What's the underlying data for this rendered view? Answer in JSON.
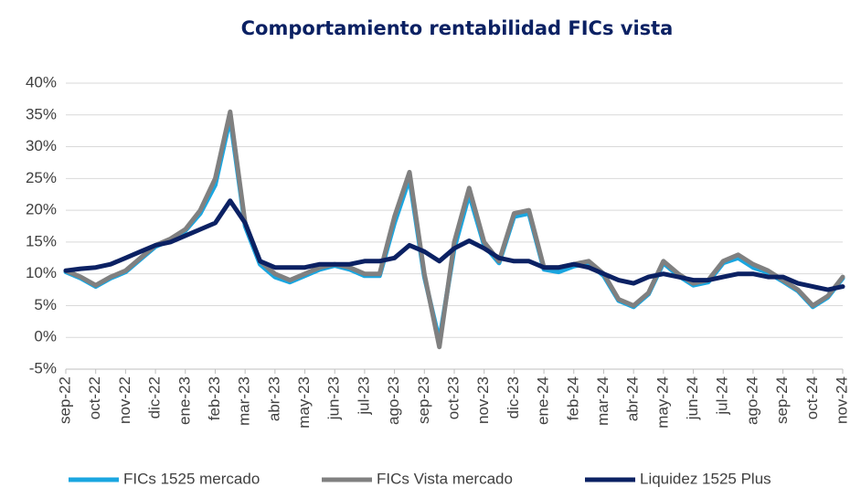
{
  "chart_data": {
    "type": "line",
    "title": "Comportamiento rentabilidad FICs vista",
    "categories": [
      "sep-22",
      null,
      "oct-22",
      null,
      "nov-22",
      null,
      "dic-22",
      null,
      "ene-23",
      null,
      "feb-23",
      null,
      "mar-23",
      null,
      "abr-23",
      null,
      "may-23",
      null,
      "jun-23",
      null,
      "jul-23",
      null,
      "ago-23",
      null,
      "sep-23",
      null,
      "oct-23",
      null,
      "nov-23",
      null,
      "dic-23",
      null,
      "ene-24",
      null,
      "feb-24",
      null,
      "mar-24",
      null,
      "abr-24",
      null,
      "may-24",
      null,
      "jun-24",
      null,
      "jul-24",
      null,
      "ago-24",
      null,
      "sep-24",
      null,
      "oct-24",
      null,
      "nov-24"
    ],
    "series": [
      {
        "name": "FICs 1525 mercado",
        "color": "#1aa6e0",
        "values": [
          10.3,
          9.3,
          8.0,
          9.3,
          10.3,
          12.3,
          14.3,
          15.3,
          16.8,
          19.5,
          24,
          34.5,
          17.5,
          11.5,
          9.5,
          8.7,
          9.7,
          10.7,
          11.3,
          10.7,
          9.7,
          9.7,
          18,
          25,
          9.5,
          -0.5,
          14,
          22.5,
          14.5,
          11.7,
          19,
          19.5,
          10.7,
          10.3,
          11.2,
          11.7,
          9.7,
          5.8,
          4.8,
          6.8,
          11.7,
          9.7,
          8.2,
          8.7,
          11.7,
          12.5,
          11,
          10.2,
          8.8,
          7.3,
          4.8,
          6.3,
          9.3
        ]
      },
      {
        "name": "FICs Vista mercado",
        "color": "#808080",
        "values": [
          10.5,
          9.5,
          8.2,
          9.5,
          10.5,
          12.5,
          14.5,
          15.5,
          17,
          20,
          25,
          35.5,
          18,
          12,
          10,
          9,
          10,
          11,
          11.5,
          11,
          10,
          10,
          19,
          26,
          10,
          -1.5,
          15,
          23.5,
          15,
          12,
          19.5,
          20,
          11,
          11,
          11.5,
          12,
          10,
          6,
          5,
          7,
          12,
          10,
          8.5,
          9,
          12,
          13,
          11.5,
          10.5,
          9,
          7.5,
          5,
          6.5,
          9.5
        ]
      },
      {
        "name": "Liquidez 1525 Plus",
        "color": "#0b2163",
        "values": [
          10.5,
          10.8,
          11,
          11.5,
          12.5,
          13.5,
          14.5,
          15,
          16,
          17,
          18,
          21.5,
          18,
          12,
          11,
          11,
          11,
          11.5,
          11.5,
          11.5,
          12,
          12,
          12.5,
          14.5,
          13.5,
          12,
          14,
          15.2,
          14,
          12.5,
          12,
          12,
          11,
          11,
          11.5,
          11,
          10,
          9,
          8.5,
          9.5,
          10,
          9.5,
          9,
          9,
          9.5,
          10,
          10,
          9.5,
          9.5,
          8.5,
          8,
          7.5,
          8
        ]
      }
    ],
    "ylim": [
      -5,
      40
    ],
    "yticks": [
      {
        "value": -5,
        "label": "-5%"
      },
      {
        "value": 0,
        "label": "0%"
      },
      {
        "value": 5,
        "label": "5%"
      },
      {
        "value": 10,
        "label": "10%"
      },
      {
        "value": 15,
        "label": "15%"
      },
      {
        "value": 20,
        "label": "20%"
      },
      {
        "value": 25,
        "label": "25%"
      },
      {
        "value": 30,
        "label": "30%"
      },
      {
        "value": 35,
        "label": "35%"
      },
      {
        "value": 40,
        "label": "40%"
      }
    ],
    "grid": true,
    "legend": "bottom"
  }
}
